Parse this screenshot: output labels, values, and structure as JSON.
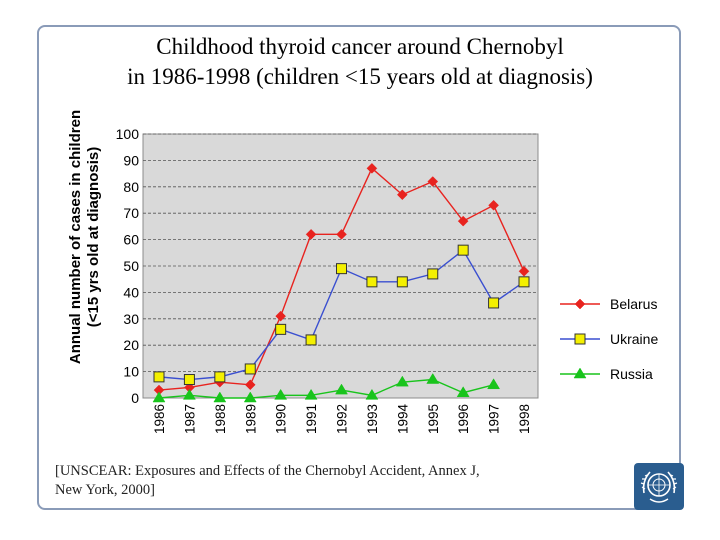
{
  "slide": {
    "title_line1": "Childhood thyroid cancer around Chernobyl",
    "title_line2": "in 1986-1998 (children <15 years old at diagnosis)",
    "citation_line1": "[UNSCEAR: Exposures and Effects of the Chernobyl Accident, Annex J,",
    "citation_line2": "New York, 2000]",
    "logo_icon": "un-emblem-icon"
  },
  "chart_data": {
    "type": "line",
    "title": "",
    "xlabel": "",
    "ylabel_line1": "Annual number of cases in children",
    "ylabel_line2": "(<15 yrs old at diagnosis)",
    "categories": [
      "1986",
      "1987",
      "1988",
      "1989",
      "1990",
      "1991",
      "1992",
      "1993",
      "1994",
      "1995",
      "1996",
      "1997",
      "1998"
    ],
    "ylim": [
      0,
      100
    ],
    "yticks": [
      0,
      10,
      20,
      30,
      40,
      50,
      60,
      70,
      80,
      90,
      100
    ],
    "grid": true,
    "legend_position": "right",
    "series": [
      {
        "name": "Belarus",
        "color": "#e8231f",
        "marker": "diamond",
        "values": [
          3,
          4,
          6,
          5,
          31,
          62,
          62,
          87,
          77,
          82,
          67,
          73,
          48
        ]
      },
      {
        "name": "Ukraine",
        "color": "#3a4fd0",
        "marker": "square",
        "values": [
          8,
          7,
          8,
          11,
          26,
          22,
          49,
          44,
          44,
          47,
          56,
          36,
          44
        ]
      },
      {
        "name": "Russia",
        "color": "#19c41c",
        "marker": "triangle",
        "values": [
          0,
          1,
          0,
          0,
          1,
          1,
          3,
          1,
          6,
          7,
          2,
          5,
          null
        ]
      }
    ]
  }
}
